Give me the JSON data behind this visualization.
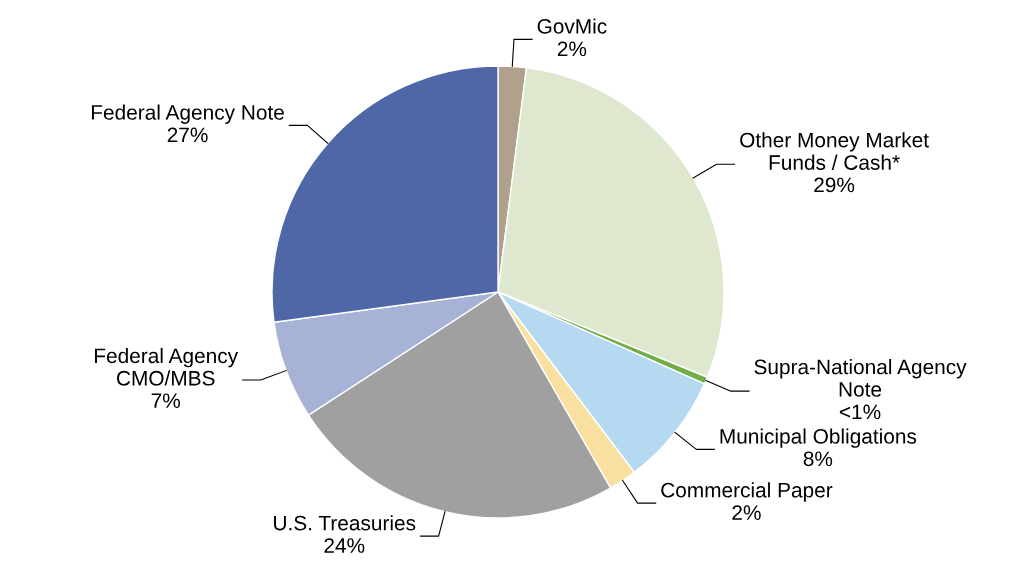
{
  "chart_data": {
    "type": "pie",
    "categories": [
      "GovMic",
      "Other Money Market\nFunds / Cash*",
      "Supra-National Agency\nNote",
      "Municipal Obligations",
      "Commercial Paper",
      "U.S. Treasuries",
      "Federal Agency\nCMO/MBS",
      "Federal Agency Note"
    ],
    "values": [
      2,
      29,
      0.5,
      8,
      2,
      24,
      7,
      27
    ],
    "value_labels": [
      "2%",
      "29%",
      "<1%",
      "8%",
      "2%",
      "24%",
      "7%",
      "27%"
    ],
    "colors": [
      "#b0a18d",
      "#dde8cf",
      "#70ad47",
      "#b5d9f1",
      "#f8e0a0",
      "#a0a0a0",
      "#a6b3d6",
      "#4f67a7"
    ]
  }
}
